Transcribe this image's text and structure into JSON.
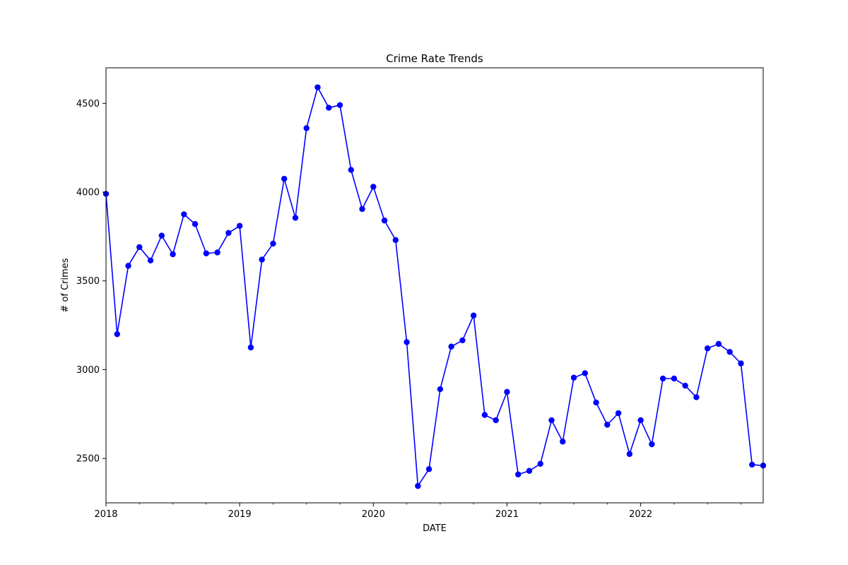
{
  "chart_data": {
    "type": "line",
    "title": "Crime Rate Trends",
    "xlabel": "DATE",
    "ylabel": "# of Crimes",
    "x_range": [
      "2018-01",
      "2022-12"
    ],
    "ylim": [
      2250,
      4700
    ],
    "y_ticks": [
      2500,
      3000,
      3500,
      4000,
      4500
    ],
    "x_ticks": [
      {
        "label": "2018",
        "date": "2018-01"
      },
      {
        "label": "2019",
        "date": "2019-01"
      },
      {
        "label": "2020",
        "date": "2020-01"
      },
      {
        "label": "2021",
        "date": "2021-01"
      },
      {
        "label": "2022",
        "date": "2022-01"
      }
    ],
    "grid": false,
    "line_color": "#0000ff",
    "series": [
      {
        "x": [
          "2018-01",
          "2018-02",
          "2018-03",
          "2018-04",
          "2018-05",
          "2018-06",
          "2018-07",
          "2018-08",
          "2018-09",
          "2018-10",
          "2018-11",
          "2018-12",
          "2019-01",
          "2019-02",
          "2019-03",
          "2019-04",
          "2019-05",
          "2019-06",
          "2019-07",
          "2019-08",
          "2019-09",
          "2019-10",
          "2019-11",
          "2019-12",
          "2020-01",
          "2020-02",
          "2020-03",
          "2020-04",
          "2020-05",
          "2020-06",
          "2020-07",
          "2020-08",
          "2020-09",
          "2020-10",
          "2020-11",
          "2020-12",
          "2021-01",
          "2021-02",
          "2021-03",
          "2021-04",
          "2021-05",
          "2021-06",
          "2021-07",
          "2021-08",
          "2021-09",
          "2021-10",
          "2021-11",
          "2021-12",
          "2022-01",
          "2022-02",
          "2022-03",
          "2022-04",
          "2022-05",
          "2022-06",
          "2022-07",
          "2022-08",
          "2022-09",
          "2022-10",
          "2022-11",
          "2022-12"
        ],
        "values": [
          3990,
          3200,
          3585,
          3690,
          3615,
          3755,
          3650,
          3875,
          3820,
          3655,
          3660,
          3770,
          3810,
          3125,
          3620,
          3710,
          4075,
          3855,
          4360,
          4590,
          4475,
          4490,
          4125,
          3905,
          4030,
          3840,
          3730,
          3155,
          2345,
          2440,
          2890,
          3130,
          3165,
          3305,
          2745,
          2715,
          2875,
          2410,
          2430,
          2470,
          2715,
          2595,
          2955,
          2980,
          2815,
          2690,
          2755,
          2525,
          2715,
          2580,
          2950,
          2950,
          2910,
          2845,
          3120,
          3145,
          3100,
          3035,
          2465,
          2460
        ]
      }
    ]
  }
}
